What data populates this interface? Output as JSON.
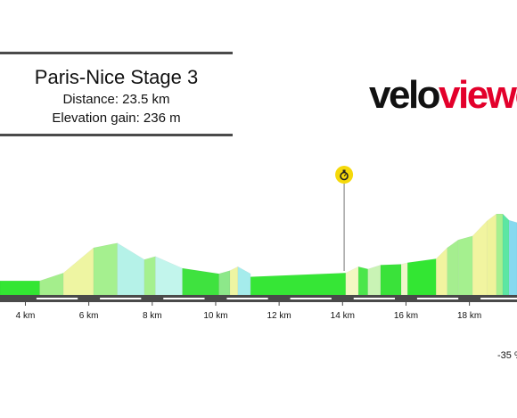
{
  "header": {
    "title": "Paris-Nice Stage 3",
    "distance": "Distance: 23.5 km",
    "elevation_gain": "Elevation gain: 236 m"
  },
  "logo": {
    "part1": "velo",
    "part2": "viewe"
  },
  "gradient_note": "-35 %",
  "colors": {
    "road": "#4a4a4a",
    "road_stripe": "#ffffff",
    "logo_red": "#e3002b",
    "marker": "#f5d90a"
  },
  "chart_data": {
    "type": "area",
    "title": "Paris-Nice Stage 3",
    "x_unit": "km",
    "x_range": [
      3.2,
      19.5
    ],
    "y_range": [
      0,
      120
    ],
    "x_ticks": [
      4,
      6,
      8,
      10,
      12,
      14,
      16,
      18
    ],
    "x_tick_labels": [
      "4 km",
      "6 km",
      "8 km",
      "10 km",
      "12 km",
      "14 km",
      "16 km",
      "18 km"
    ],
    "marker": {
      "type": "stopwatch",
      "x": 14.05
    },
    "segments": [
      {
        "x0": 3.2,
        "x1": 4.45,
        "y0": 18,
        "y1": 18,
        "color": "#33e633"
      },
      {
        "x0": 4.45,
        "x1": 5.2,
        "y0": 18,
        "y1": 28,
        "color": "#a4ee8c"
      },
      {
        "x0": 5.2,
        "x1": 6.15,
        "y0": 28,
        "y1": 60,
        "color": "#eef5a2"
      },
      {
        "x0": 6.15,
        "x1": 6.9,
        "y0": 60,
        "y1": 66,
        "color": "#a5f08f"
      },
      {
        "x0": 6.9,
        "x1": 7.75,
        "y0": 66,
        "y1": 45,
        "color": "#b5f2e8"
      },
      {
        "x0": 7.75,
        "x1": 8.1,
        "y0": 45,
        "y1": 49,
        "color": "#a5f08f"
      },
      {
        "x0": 8.1,
        "x1": 8.95,
        "y0": 49,
        "y1": 34,
        "color": "#c2f5ec"
      },
      {
        "x0": 8.95,
        "x1": 10.1,
        "y0": 34,
        "y1": 27,
        "color": "#3fe23f"
      },
      {
        "x0": 10.1,
        "x1": 10.45,
        "y0": 27,
        "y1": 31,
        "color": "#8de88a"
      },
      {
        "x0": 10.45,
        "x1": 10.7,
        "y0": 31,
        "y1": 36,
        "color": "#eef5a2"
      },
      {
        "x0": 10.7,
        "x1": 11.1,
        "y0": 36,
        "y1": 27,
        "color": "#a5ecec"
      },
      {
        "x0": 11.1,
        "x1": 14.1,
        "y0": 23,
        "y1": 28,
        "color": "#36e636"
      },
      {
        "x0": 14.1,
        "x1": 14.5,
        "y0": 28,
        "y1": 36,
        "color": "#f3f7c2"
      },
      {
        "x0": 14.5,
        "x1": 14.8,
        "y0": 36,
        "y1": 33,
        "color": "#4be64b"
      },
      {
        "x0": 14.8,
        "x1": 15.2,
        "y0": 33,
        "y1": 38,
        "color": "#c9f3b5"
      },
      {
        "x0": 15.2,
        "x1": 15.85,
        "y0": 38,
        "y1": 39,
        "color": "#3ae23a"
      },
      {
        "x0": 15.85,
        "x1": 16.05,
        "y0": 39,
        "y1": 41,
        "color": "#eef7c8"
      },
      {
        "x0": 16.05,
        "x1": 16.95,
        "y0": 41,
        "y1": 46,
        "color": "#33e633"
      },
      {
        "x0": 16.95,
        "x1": 17.3,
        "y0": 46,
        "y1": 60,
        "color": "#f1f4a0"
      },
      {
        "x0": 17.3,
        "x1": 17.65,
        "y0": 60,
        "y1": 70,
        "color": "#a5ee8f"
      },
      {
        "x0": 17.65,
        "x1": 18.1,
        "y0": 70,
        "y1": 75,
        "color": "#a5f08f"
      },
      {
        "x0": 18.1,
        "x1": 18.55,
        "y0": 75,
        "y1": 94,
        "color": "#f1f4a0"
      },
      {
        "x0": 18.55,
        "x1": 18.85,
        "y0": 94,
        "y1": 103,
        "color": "#eef39b"
      },
      {
        "x0": 18.85,
        "x1": 19.05,
        "y0": 103,
        "y1": 103,
        "color": "#a5f08f"
      },
      {
        "x0": 19.05,
        "x1": 19.25,
        "y0": 103,
        "y1": 95,
        "color": "#5ce6a3"
      },
      {
        "x0": 19.25,
        "x1": 19.5,
        "y0": 95,
        "y1": 92,
        "color": "#86d9ef"
      }
    ]
  }
}
